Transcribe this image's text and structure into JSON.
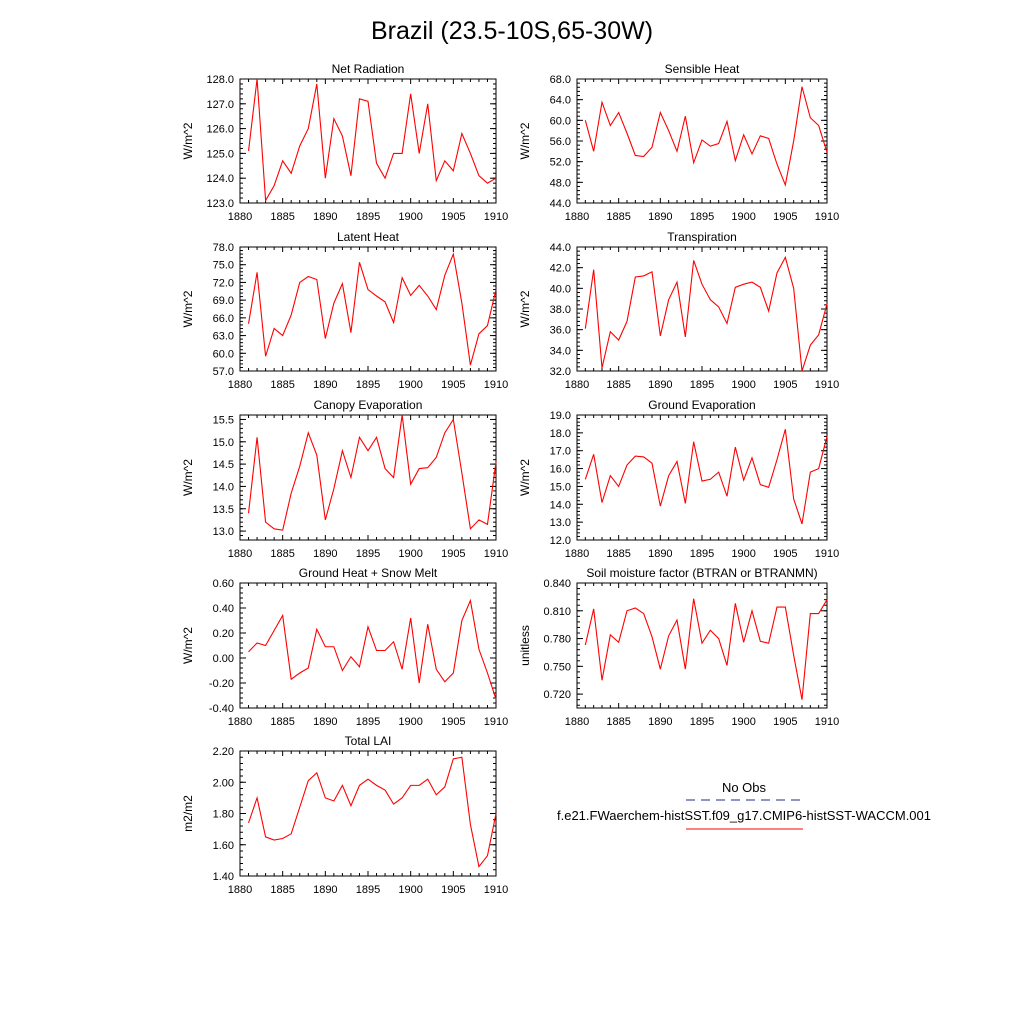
{
  "title": "Brazil (23.5-10S,65-30W)",
  "x_ticks": [
    "1880",
    "1885",
    "1890",
    "1895",
    "1900",
    "1905",
    "1910"
  ],
  "legend": {
    "obs_label": "No Obs",
    "case_label": "f.e21.FWaerchem-histSST.f09_g17.CMIP6-histSST-WACCM.001",
    "obs_color": "#1f2a8a",
    "case_color": "#ff0000"
  },
  "chart_data": [
    {
      "type": "line",
      "title": "Net Radiation",
      "ylabel": "W/m^2",
      "xlim": [
        1880,
        1910
      ],
      "ylim": [
        123.0,
        128.0
      ],
      "y_ticks": [
        "123.0",
        "124.0",
        "125.0",
        "126.0",
        "127.0",
        "128.0"
      ],
      "x": [
        1881,
        1882,
        1883,
        1884,
        1885,
        1886,
        1887,
        1888,
        1889,
        1890,
        1891,
        1892,
        1893,
        1894,
        1895,
        1896,
        1897,
        1898,
        1899,
        1900,
        1901,
        1902,
        1903,
        1904,
        1905,
        1906,
        1907,
        1908,
        1909,
        1910
      ],
      "series": [
        {
          "values": [
            125.1,
            128.0,
            123.1,
            123.7,
            124.7,
            124.2,
            125.3,
            126.0,
            127.8,
            124.0,
            126.4,
            125.7,
            124.1,
            127.2,
            127.1,
            124.6,
            124.0,
            125.0,
            125.0,
            127.4,
            125.0,
            127.0,
            123.9,
            124.7,
            124.3,
            125.8,
            125.0,
            124.1,
            123.8,
            124.0
          ]
        }
      ]
    },
    {
      "type": "line",
      "title": "Sensible Heat",
      "ylabel": "W/m^2",
      "xlim": [
        1880,
        1910
      ],
      "ylim": [
        44.0,
        68.0
      ],
      "y_ticks": [
        "44.0",
        "48.0",
        "52.0",
        "56.0",
        "60.0",
        "64.0",
        "68.0"
      ],
      "x": [
        1881,
        1882,
        1883,
        1884,
        1885,
        1886,
        1887,
        1888,
        1889,
        1890,
        1891,
        1892,
        1893,
        1894,
        1895,
        1896,
        1897,
        1898,
        1899,
        1900,
        1901,
        1902,
        1903,
        1904,
        1905,
        1906,
        1907,
        1908,
        1909,
        1910
      ],
      "series": [
        {
          "values": [
            60.0,
            54.0,
            63.5,
            59.0,
            61.5,
            57.5,
            53.2,
            53.0,
            54.8,
            61.5,
            58.0,
            54.0,
            60.8,
            51.8,
            56.2,
            55.0,
            55.5,
            59.8,
            52.2,
            57.2,
            53.5,
            57.0,
            56.5,
            51.5,
            47.5,
            56.0,
            66.5,
            60.5,
            59.0,
            53.8
          ]
        }
      ]
    },
    {
      "type": "line",
      "title": "Latent Heat",
      "ylabel": "W/m^2",
      "xlim": [
        1880,
        1910
      ],
      "ylim": [
        57.0,
        78.0
      ],
      "y_ticks": [
        "57.0",
        "60.0",
        "63.0",
        "66.0",
        "69.0",
        "72.0",
        "75.0",
        "78.0"
      ],
      "x": [
        1881,
        1882,
        1883,
        1884,
        1885,
        1886,
        1887,
        1888,
        1889,
        1890,
        1891,
        1892,
        1893,
        1894,
        1895,
        1896,
        1897,
        1898,
        1899,
        1900,
        1901,
        1902,
        1903,
        1904,
        1905,
        1906,
        1907,
        1908,
        1909,
        1910
      ],
      "series": [
        {
          "values": [
            65.0,
            73.7,
            59.5,
            64.2,
            63.0,
            66.5,
            72.0,
            73.0,
            72.5,
            62.5,
            68.5,
            71.8,
            63.5,
            75.4,
            70.8,
            69.7,
            68.7,
            65.2,
            72.8,
            69.8,
            71.5,
            69.7,
            67.4,
            73.2,
            76.8,
            68.5,
            58.0,
            63.3,
            64.7,
            70.8
          ]
        }
      ]
    },
    {
      "type": "line",
      "title": "Transpiration",
      "ylabel": "W/m^2",
      "xlim": [
        1880,
        1910
      ],
      "ylim": [
        32.0,
        44.0
      ],
      "y_ticks": [
        "32.0",
        "34.0",
        "36.0",
        "38.0",
        "40.0",
        "42.0",
        "44.0"
      ],
      "x": [
        1881,
        1882,
        1883,
        1884,
        1885,
        1886,
        1887,
        1888,
        1889,
        1890,
        1891,
        1892,
        1893,
        1894,
        1895,
        1896,
        1897,
        1898,
        1899,
        1900,
        1901,
        1902,
        1903,
        1904,
        1905,
        1906,
        1907,
        1908,
        1909,
        1910
      ],
      "series": [
        {
          "values": [
            36.1,
            41.8,
            32.3,
            35.8,
            35.0,
            36.8,
            41.1,
            41.2,
            41.6,
            35.4,
            38.9,
            40.6,
            35.3,
            42.7,
            40.4,
            38.9,
            38.2,
            36.6,
            40.1,
            40.4,
            40.6,
            40.1,
            37.8,
            41.5,
            43.0,
            40.0,
            32.0,
            34.5,
            35.5,
            38.5
          ]
        }
      ]
    },
    {
      "type": "line",
      "title": "Canopy Evaporation",
      "ylabel": "W/m^2",
      "xlim": [
        1880,
        1910
      ],
      "ylim": [
        12.8,
        15.6
      ],
      "y_ticks": [
        "13.0",
        "13.5",
        "14.0",
        "14.5",
        "15.0",
        "15.5"
      ],
      "x": [
        1881,
        1882,
        1883,
        1884,
        1885,
        1886,
        1887,
        1888,
        1889,
        1890,
        1891,
        1892,
        1893,
        1894,
        1895,
        1896,
        1897,
        1898,
        1899,
        1900,
        1901,
        1902,
        1903,
        1904,
        1905,
        1906,
        1907,
        1908,
        1909,
        1910
      ],
      "series": [
        {
          "values": [
            13.4,
            15.1,
            13.2,
            13.05,
            13.02,
            13.85,
            14.45,
            15.2,
            14.7,
            13.25,
            13.95,
            14.8,
            14.2,
            15.1,
            14.8,
            15.1,
            14.4,
            14.2,
            15.6,
            14.05,
            14.4,
            14.42,
            14.65,
            15.2,
            15.5,
            14.3,
            13.05,
            13.25,
            13.15,
            14.55
          ]
        }
      ]
    },
    {
      "type": "line",
      "title": "Ground Evaporation",
      "ylabel": "W/m^2",
      "xlim": [
        1880,
        1910
      ],
      "ylim": [
        12.0,
        19.0
      ],
      "y_ticks": [
        "12.0",
        "13.0",
        "14.0",
        "15.0",
        "16.0",
        "17.0",
        "18.0",
        "19.0"
      ],
      "x": [
        1881,
        1882,
        1883,
        1884,
        1885,
        1886,
        1887,
        1888,
        1889,
        1890,
        1891,
        1892,
        1893,
        1894,
        1895,
        1896,
        1897,
        1898,
        1899,
        1900,
        1901,
        1902,
        1903,
        1904,
        1905,
        1906,
        1907,
        1908,
        1909,
        1910
      ],
      "series": [
        {
          "values": [
            15.4,
            16.8,
            14.1,
            15.6,
            15.0,
            16.2,
            16.7,
            16.65,
            16.3,
            13.9,
            15.6,
            16.4,
            14.05,
            17.5,
            15.3,
            15.4,
            15.8,
            14.45,
            17.2,
            15.35,
            16.6,
            15.1,
            14.95,
            16.5,
            18.2,
            14.3,
            12.9,
            15.8,
            16.0,
            17.8
          ]
        }
      ]
    },
    {
      "type": "line",
      "title": "Ground Heat + Snow Melt",
      "ylabel": "W/m^2",
      "xlim": [
        1880,
        1910
      ],
      "ylim": [
        -0.4,
        0.6
      ],
      "y_ticks": [
        "-0.40",
        "-0.20",
        "0.00",
        "0.20",
        "0.40",
        "0.60"
      ],
      "x": [
        1881,
        1882,
        1883,
        1884,
        1885,
        1886,
        1887,
        1888,
        1889,
        1890,
        1891,
        1892,
        1893,
        1894,
        1895,
        1896,
        1897,
        1898,
        1899,
        1900,
        1901,
        1902,
        1903,
        1904,
        1905,
        1906,
        1907,
        1908,
        1909,
        1910
      ],
      "series": [
        {
          "values": [
            0.05,
            0.12,
            0.1,
            0.22,
            0.34,
            -0.17,
            -0.12,
            -0.08,
            0.23,
            0.09,
            0.09,
            -0.1,
            0.01,
            -0.07,
            0.25,
            0.06,
            0.06,
            0.13,
            -0.09,
            0.32,
            -0.2,
            0.27,
            -0.09,
            -0.19,
            -0.12,
            0.3,
            0.46,
            0.07,
            -0.12,
            -0.33
          ]
        }
      ]
    },
    {
      "type": "line",
      "title": "Soil moisture factor (BTRAN or BTRANMN)",
      "ylabel": "unitless",
      "xlim": [
        1880,
        1910
      ],
      "ylim": [
        0.705,
        0.84
      ],
      "y_ticks": [
        "0.720",
        "0.750",
        "0.780",
        "0.810",
        "0.840"
      ],
      "x": [
        1881,
        1882,
        1883,
        1884,
        1885,
        1886,
        1887,
        1888,
        1889,
        1890,
        1891,
        1892,
        1893,
        1894,
        1895,
        1896,
        1897,
        1898,
        1899,
        1900,
        1901,
        1902,
        1903,
        1904,
        1905,
        1906,
        1907,
        1908,
        1909,
        1910
      ],
      "series": [
        {
          "values": [
            0.773,
            0.812,
            0.735,
            0.784,
            0.776,
            0.81,
            0.813,
            0.807,
            0.782,
            0.747,
            0.783,
            0.8,
            0.747,
            0.823,
            0.775,
            0.789,
            0.78,
            0.751,
            0.818,
            0.776,
            0.81,
            0.777,
            0.775,
            0.814,
            0.814,
            0.762,
            0.714,
            0.807,
            0.807,
            0.822
          ]
        }
      ]
    },
    {
      "type": "line",
      "title": "Total LAI",
      "ylabel": "m2/m2",
      "xlim": [
        1880,
        1910
      ],
      "ylim": [
        1.4,
        2.2
      ],
      "y_ticks": [
        "1.40",
        "1.60",
        "1.80",
        "2.00",
        "2.20"
      ],
      "x": [
        1881,
        1882,
        1883,
        1884,
        1885,
        1886,
        1887,
        1888,
        1889,
        1890,
        1891,
        1892,
        1893,
        1894,
        1895,
        1896,
        1897,
        1898,
        1899,
        1900,
        1901,
        1902,
        1903,
        1904,
        1905,
        1906,
        1907,
        1908,
        1909,
        1910
      ],
      "series": [
        {
          "values": [
            1.74,
            1.9,
            1.65,
            1.63,
            1.64,
            1.67,
            1.84,
            2.01,
            2.06,
            1.9,
            1.88,
            1.98,
            1.85,
            1.98,
            2.02,
            1.98,
            1.95,
            1.86,
            1.9,
            1.98,
            1.98,
            2.02,
            1.92,
            1.97,
            2.15,
            2.16,
            1.73,
            1.46,
            1.53,
            1.8
          ]
        }
      ]
    }
  ]
}
